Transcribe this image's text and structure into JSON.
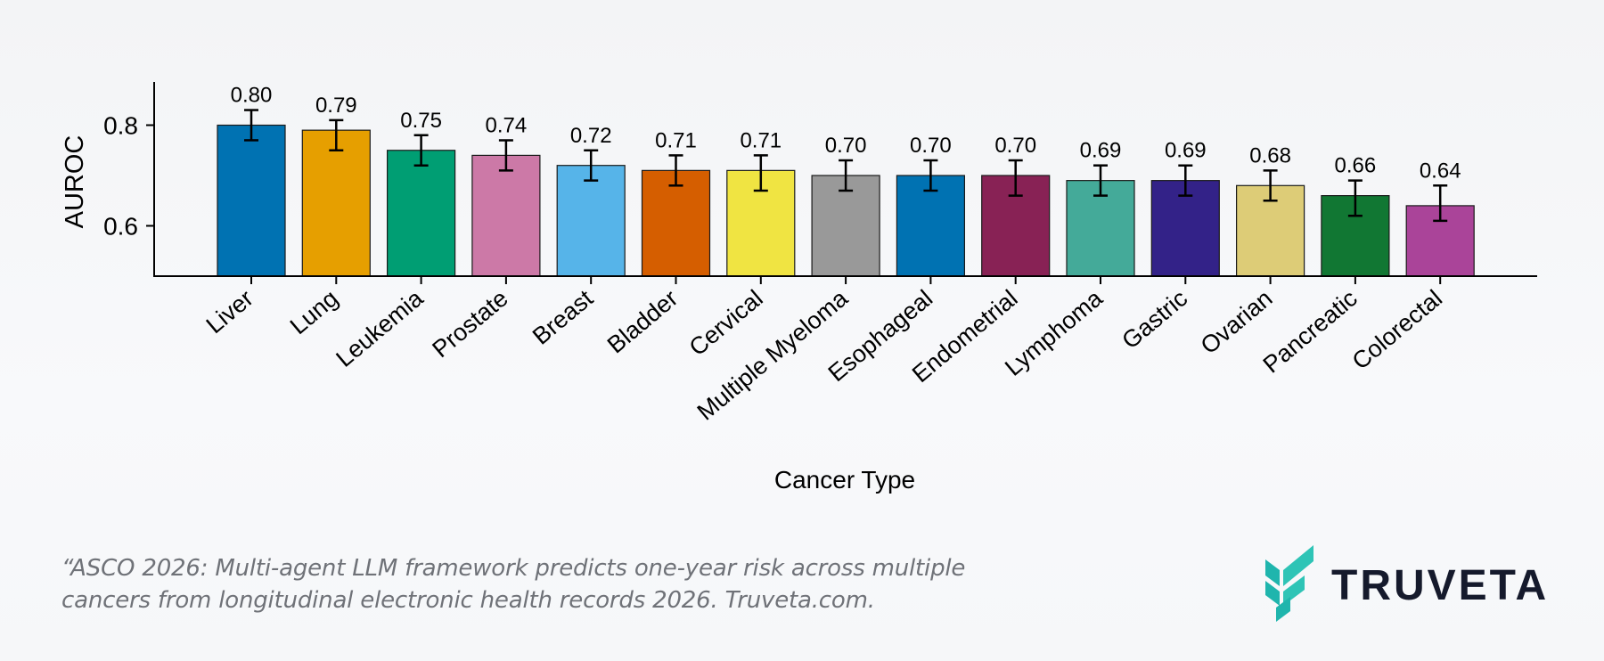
{
  "chart_data": {
    "type": "bar",
    "xlabel": "Cancer Type",
    "ylabel": "AUROC",
    "ylim": [
      0.5,
      0.9
    ],
    "yticks": [
      0.6,
      0.8
    ],
    "ytick_labels": [
      "0.6",
      "0.8"
    ],
    "categories": [
      "Liver",
      "Lung",
      "Leukemia",
      "Prostate",
      "Breast",
      "Bladder",
      "Cervical",
      "Multiple Myeloma",
      "Esophageal",
      "Endometrial",
      "Lymphoma",
      "Gastric",
      "Ovarian",
      "Pancreatic",
      "Colorectal"
    ],
    "values": [
      0.8,
      0.79,
      0.75,
      0.74,
      0.72,
      0.71,
      0.71,
      0.7,
      0.7,
      0.7,
      0.69,
      0.69,
      0.68,
      0.66,
      0.64
    ],
    "value_labels": [
      "0.80",
      "0.79",
      "0.75",
      "0.74",
      "0.72",
      "0.71",
      "0.71",
      "0.70",
      "0.70",
      "0.70",
      "0.69",
      "0.69",
      "0.68",
      "0.66",
      "0.64"
    ],
    "error_low": [
      0.77,
      0.75,
      0.72,
      0.71,
      0.69,
      0.68,
      0.67,
      0.67,
      0.67,
      0.66,
      0.66,
      0.66,
      0.65,
      0.62,
      0.61
    ],
    "error_high": [
      0.83,
      0.81,
      0.78,
      0.77,
      0.75,
      0.74,
      0.74,
      0.73,
      0.73,
      0.73,
      0.72,
      0.72,
      0.71,
      0.69,
      0.68
    ],
    "colors": [
      "#0072b2",
      "#e69f00",
      "#009e73",
      "#cc79a7",
      "#56b4e9",
      "#d55e00",
      "#f0e442",
      "#999999",
      "#0072b2",
      "#882255",
      "#44aa99",
      "#332288",
      "#ddcc77",
      "#117733",
      "#aa4499"
    ],
    "grid": false,
    "legend": "none"
  },
  "footer": {
    "citation": "“ASCO 2026: Multi-agent LLM framework predicts one-year risk across multiple cancers from longitudinal electronic health records 2026. Truveta.com.",
    "brand": "TRUVETA",
    "brand_colors": [
      "#1fb5ad",
      "#2ec4b6"
    ]
  }
}
